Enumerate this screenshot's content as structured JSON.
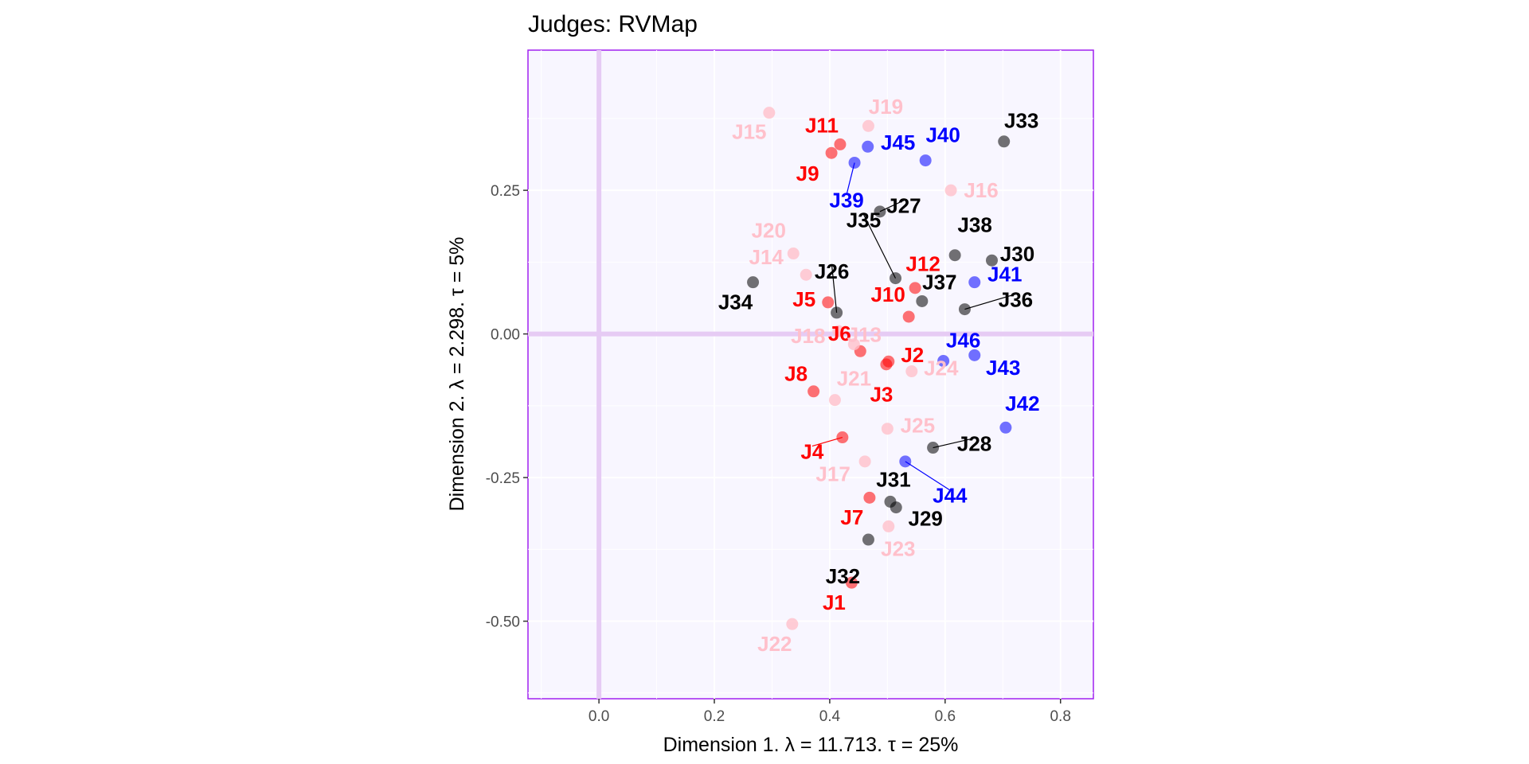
{
  "chart_data": {
    "type": "scatter",
    "title": "Judges: RVMap",
    "xlabel": "Dimension 1.   λ = 11.713.  τ = 25%",
    "ylabel": "Dimension 2.   λ = 2.298.  τ = 5%",
    "xlim": [
      -0.123,
      0.857
    ],
    "ylim": [
      -0.635,
      0.494
    ],
    "x_ticks": [
      0.0,
      0.2,
      0.4,
      0.6,
      0.8
    ],
    "x_tick_labels": [
      "0.0",
      "0.2",
      "0.4",
      "0.6",
      "0.8"
    ],
    "y_ticks": [
      0.25,
      0.0,
      -0.25,
      -0.5
    ],
    "y_tick_labels": [
      "0.25",
      "0.00",
      "-0.25",
      "-0.50"
    ],
    "grid": true,
    "reference_lines": {
      "x": 0,
      "y": 0
    },
    "colors": {
      "red": "#ff0000",
      "pink": "#ffc0cb",
      "blue": "#0000ff",
      "black": "#000000",
      "panel_background": "#f8f6ff",
      "panel_border": "#a020f0",
      "reference_line": "#e6cbf4"
    },
    "series": [
      {
        "color_key": "red",
        "points": [
          {
            "label": "J1",
            "x": 0.438,
            "y": -0.433
          },
          {
            "label": "J2",
            "x": 0.502,
            "y": -0.048
          },
          {
            "label": "J3",
            "x": 0.498,
            "y": -0.053
          },
          {
            "label": "J4",
            "x": 0.422,
            "y": -0.18
          },
          {
            "label": "J5",
            "x": 0.397,
            "y": 0.055
          },
          {
            "label": "J6",
            "x": 0.453,
            "y": -0.03
          },
          {
            "label": "J7",
            "x": 0.469,
            "y": -0.285
          },
          {
            "label": "J8",
            "x": 0.372,
            "y": -0.1
          },
          {
            "label": "J9",
            "x": 0.403,
            "y": 0.315
          },
          {
            "label": "J10",
            "x": 0.537,
            "y": 0.03
          },
          {
            "label": "J11",
            "x": 0.418,
            "y": 0.33
          },
          {
            "label": "J12",
            "x": 0.548,
            "y": 0.08
          }
        ]
      },
      {
        "color_key": "pink",
        "points": [
          {
            "label": "J13",
            "x": 0.442,
            "y": -0.018
          },
          {
            "label": "J14",
            "x": 0.359,
            "y": 0.103
          },
          {
            "label": "J15",
            "x": 0.295,
            "y": 0.385
          },
          {
            "label": "J16",
            "x": 0.61,
            "y": 0.25
          },
          {
            "label": "J17",
            "x": 0.461,
            "y": -0.222
          },
          {
            "label": "J18",
            "x": 0.415,
            "y": 0.005
          },
          {
            "label": "J19",
            "x": 0.467,
            "y": 0.362
          },
          {
            "label": "J20",
            "x": 0.337,
            "y": 0.14
          },
          {
            "label": "J21",
            "x": 0.409,
            "y": -0.115
          },
          {
            "label": "J22",
            "x": 0.335,
            "y": -0.505
          },
          {
            "label": "J23",
            "x": 0.502,
            "y": -0.335
          },
          {
            "label": "J24",
            "x": 0.542,
            "y": -0.065
          },
          {
            "label": "J25",
            "x": 0.5,
            "y": -0.165
          }
        ]
      },
      {
        "color_key": "black",
        "points": [
          {
            "label": "J26",
            "x": 0.412,
            "y": 0.037
          },
          {
            "label": "J27",
            "x": 0.487,
            "y": 0.213
          },
          {
            "label": "J28",
            "x": 0.579,
            "y": -0.198
          },
          {
            "label": "J29",
            "x": 0.515,
            "y": -0.302
          },
          {
            "label": "J30",
            "x": 0.681,
            "y": 0.128
          },
          {
            "label": "J31",
            "x": 0.505,
            "y": -0.292
          },
          {
            "label": "J32",
            "x": 0.467,
            "y": -0.358
          },
          {
            "label": "J33",
            "x": 0.702,
            "y": 0.335
          },
          {
            "label": "J34",
            "x": 0.267,
            "y": 0.09
          },
          {
            "label": "J35",
            "x": 0.514,
            "y": 0.097
          },
          {
            "label": "J36",
            "x": 0.634,
            "y": 0.043
          },
          {
            "label": "J37",
            "x": 0.56,
            "y": 0.057
          },
          {
            "label": "J38",
            "x": 0.617,
            "y": 0.137
          }
        ]
      },
      {
        "color_key": "blue",
        "points": [
          {
            "label": "J39",
            "x": 0.443,
            "y": 0.298
          },
          {
            "label": "J40",
            "x": 0.566,
            "y": 0.302
          },
          {
            "label": "J41",
            "x": 0.651,
            "y": 0.09
          },
          {
            "label": "J42",
            "x": 0.705,
            "y": -0.163
          },
          {
            "label": "J43",
            "x": 0.651,
            "y": -0.037
          },
          {
            "label": "J44",
            "x": 0.531,
            "y": -0.222
          },
          {
            "label": "J45",
            "x": 0.466,
            "y": 0.326
          },
          {
            "label": "J46",
            "x": 0.597,
            "y": -0.047
          }
        ]
      }
    ]
  }
}
